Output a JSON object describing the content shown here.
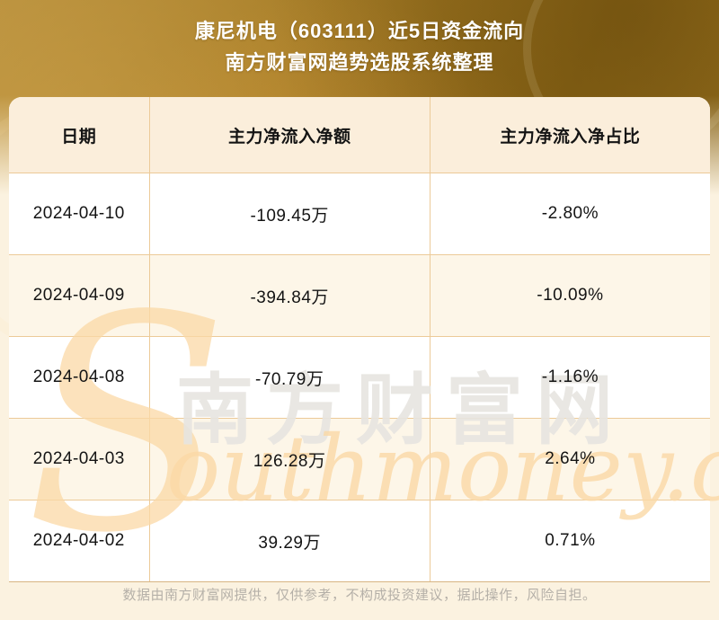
{
  "page": {
    "title_line1": "康尼机电（603111）近5日资金流向",
    "title_line2": "南方财富网趋势选股系统整理",
    "footer_disclaimer": "数据由南方财富网提供，仅供参考，不构成投资建议，据此操作，风险自担。"
  },
  "table": {
    "columns": [
      "日期",
      "主力净流入净额",
      "主力净流入净占比"
    ],
    "rows": [
      {
        "date": "2024-04-10",
        "net_inflow": "-109.45万",
        "net_inflow_pct": "-2.80%"
      },
      {
        "date": "2024-04-09",
        "net_inflow": "-394.84万",
        "net_inflow_pct": "-10.09%"
      },
      {
        "date": "2024-04-08",
        "net_inflow": "-70.79万",
        "net_inflow_pct": "-1.16%"
      },
      {
        "date": "2024-04-03",
        "net_inflow": "126.28万",
        "net_inflow_pct": "2.64%"
      },
      {
        "date": "2024-04-02",
        "net_inflow": "39.29万",
        "net_inflow_pct": "0.71%"
      }
    ]
  },
  "watermark": {
    "cn_text": "南方财富网",
    "en_initial": "S",
    "en_text": "outhmoney.com",
    "en_full": "Southmoney.com"
  },
  "colors": {
    "banner_gold": "#9c731d",
    "table_border": "#ecca98",
    "header_row_bg": "#fbeedb",
    "alt_row_bg": "#fdf6e8",
    "row_bg": "#ffffff",
    "page_bg": "#fbf2e0",
    "title_text": "#ffffff",
    "cell_text": "#141414",
    "footer_text": "#b5b0a8",
    "watermark_gray": "#e7e5e1",
    "watermark_orange": "#fbd9a6"
  },
  "chart_data": {
    "type": "table",
    "title": "康尼机电（603111）近5日资金流向",
    "subtitle": "南方财富网趋势选股系统整理",
    "columns": [
      "日期",
      "主力净流入净额",
      "主力净流入净占比"
    ],
    "rows": [
      [
        "2024-04-10",
        "-109.45万",
        "-2.80%"
      ],
      [
        "2024-04-09",
        "-394.84万",
        "-10.09%"
      ],
      [
        "2024-04-08",
        "-70.79万",
        "-1.16%"
      ],
      [
        "2024-04-03",
        "126.28万",
        "2.64%"
      ],
      [
        "2024-04-02",
        "39.29万",
        "0.71%"
      ]
    ],
    "values_numeric": {
      "dates": [
        "2024-04-10",
        "2024-04-09",
        "2024-04-08",
        "2024-04-03",
        "2024-04-02"
      ],
      "main_net_inflow_wan": [
        -109.45,
        -394.84,
        -70.79,
        126.28,
        39.29
      ],
      "main_net_inflow_pct": [
        -2.8,
        -10.09,
        -1.16,
        2.64,
        0.71
      ]
    }
  }
}
